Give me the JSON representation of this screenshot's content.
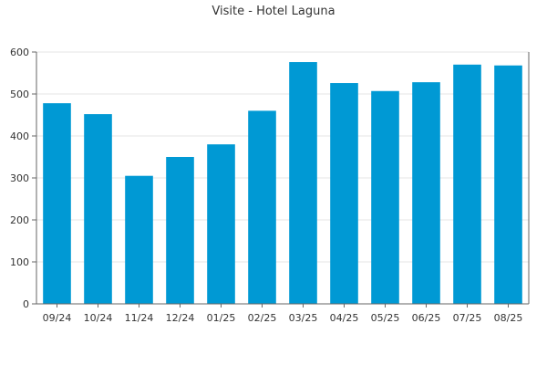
{
  "chart_data": {
    "type": "bar",
    "title": "Visite - Hotel Laguna",
    "xlabel": "",
    "ylabel": "",
    "categories": [
      "09/24",
      "10/24",
      "11/24",
      "12/24",
      "01/25",
      "02/25",
      "03/25",
      "04/25",
      "05/25",
      "06/25",
      "07/25",
      "08/25"
    ],
    "values": [
      478,
      452,
      305,
      350,
      380,
      460,
      576,
      526,
      507,
      528,
      570,
      568
    ],
    "ylim": [
      0,
      600
    ],
    "yticks": [
      0,
      100,
      200,
      300,
      400,
      500,
      600
    ],
    "grid": true,
    "legend": "none",
    "bar_color": "#0099d4"
  }
}
